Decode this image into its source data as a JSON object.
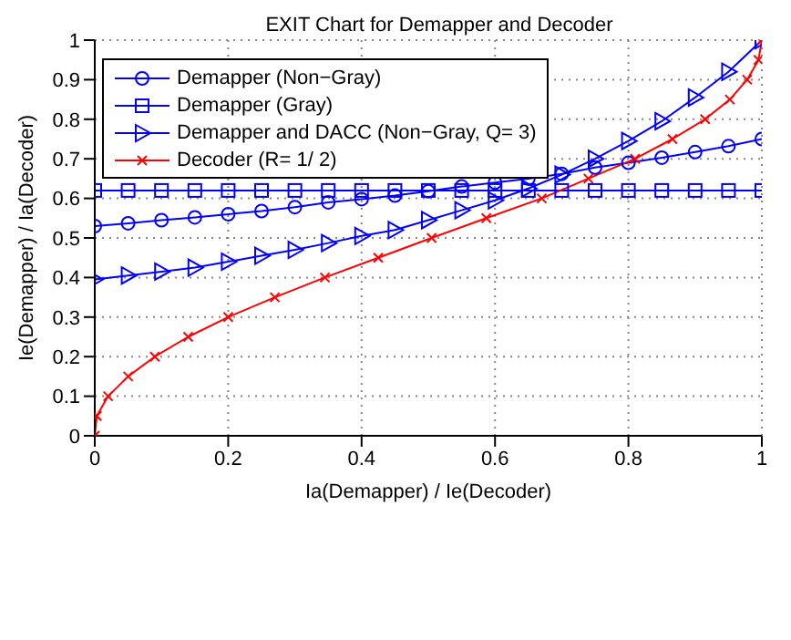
{
  "chart_data": {
    "type": "line",
    "title": "EXIT Chart for Demapper and Decoder",
    "xlabel": "Ia(Demapper) / Ie(Decoder)",
    "ylabel": "Ie(Demapper) / Ia(Decoder)",
    "xlim": [
      0,
      1
    ],
    "ylim": [
      0,
      1
    ],
    "xticks": [
      0,
      0.2,
      0.4,
      0.6,
      0.8,
      1
    ],
    "yticks": [
      0,
      0.1,
      0.2,
      0.3,
      0.4,
      0.5,
      0.6,
      0.7,
      0.8,
      0.9,
      1
    ],
    "grid": true,
    "legend": "top left",
    "line_style": "solid",
    "series": [
      {
        "name": "Demapper (Non−Gray)",
        "color": "#0000ff",
        "marker": "circle",
        "x": [
          0,
          0.05,
          0.1,
          0.15,
          0.2,
          0.25,
          0.3,
          0.35,
          0.4,
          0.45,
          0.5,
          0.55,
          0.6,
          0.65,
          0.7,
          0.75,
          0.8,
          0.85,
          0.9,
          0.95,
          1
        ],
        "values": [
          0.53,
          0.537,
          0.545,
          0.552,
          0.56,
          0.568,
          0.578,
          0.59,
          0.598,
          0.607,
          0.618,
          0.63,
          0.64,
          0.65,
          0.662,
          0.678,
          0.69,
          0.703,
          0.717,
          0.732,
          0.75
        ]
      },
      {
        "name": "Demapper (Gray)",
        "color": "#0000ff",
        "marker": "square",
        "x": [
          0,
          0.05,
          0.1,
          0.15,
          0.2,
          0.25,
          0.3,
          0.35,
          0.4,
          0.45,
          0.5,
          0.55,
          0.6,
          0.65,
          0.7,
          0.75,
          0.8,
          0.85,
          0.9,
          0.95,
          1
        ],
        "values": [
          0.62,
          0.62,
          0.62,
          0.62,
          0.62,
          0.62,
          0.62,
          0.62,
          0.62,
          0.62,
          0.62,
          0.62,
          0.62,
          0.62,
          0.62,
          0.62,
          0.62,
          0.62,
          0.62,
          0.62,
          0.62
        ]
      },
      {
        "name": "Demapper and DACC (Non−Gray, Q= 3)",
        "color": "#0000ff",
        "marker": "triangle",
        "x": [
          0,
          0.05,
          0.1,
          0.15,
          0.2,
          0.25,
          0.3,
          0.35,
          0.4,
          0.45,
          0.5,
          0.55,
          0.6,
          0.65,
          0.7,
          0.75,
          0.8,
          0.85,
          0.9,
          0.95,
          1
        ],
        "values": [
          0.395,
          0.405,
          0.415,
          0.425,
          0.44,
          0.455,
          0.47,
          0.487,
          0.505,
          0.52,
          0.545,
          0.57,
          0.595,
          0.625,
          0.66,
          0.7,
          0.745,
          0.795,
          0.855,
          0.92,
          1
        ]
      },
      {
        "name": "Decoder (R= 1/ 2)",
        "color": "#ff0000",
        "marker": "cross",
        "x": [
          0,
          0.003,
          0.02,
          0.05,
          0.09,
          0.14,
          0.2,
          0.27,
          0.345,
          0.425,
          0.505,
          0.587,
          0.67,
          0.74,
          0.81,
          0.866,
          0.915,
          0.952,
          0.978,
          0.995,
          1
        ],
        "values": [
          0,
          0.05,
          0.1,
          0.15,
          0.2,
          0.25,
          0.3,
          0.35,
          0.4,
          0.45,
          0.5,
          0.55,
          0.6,
          0.65,
          0.7,
          0.75,
          0.8,
          0.85,
          0.9,
          0.95,
          1
        ]
      }
    ]
  }
}
